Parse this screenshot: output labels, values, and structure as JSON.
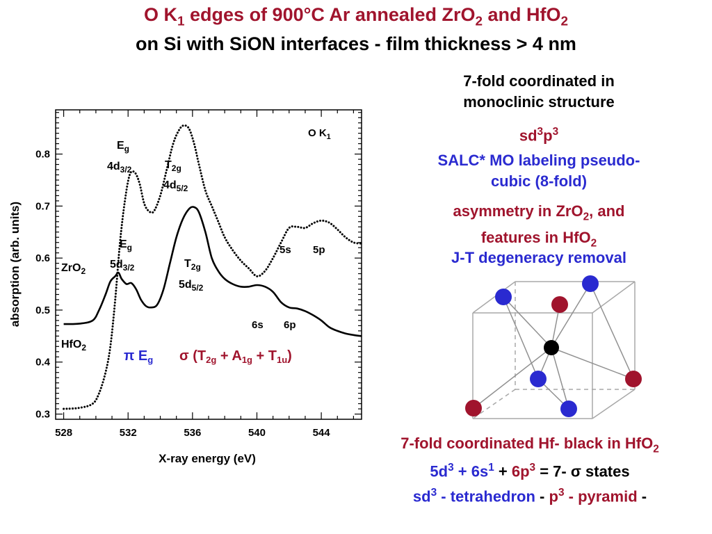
{
  "title": {
    "line1_pre": "O K",
    "line1_sub1": "1",
    "line1_mid": " edges of 900°C Ar annealed ZrO",
    "line1_sub2": "2",
    "line1_and": " and HfO",
    "line1_sub3": "2",
    "line2": "on Si with SiON interfaces - film thickness > 4 nm"
  },
  "right": {
    "coord_line1": "7-fold coordinated in",
    "coord_line2": "monoclinic structure",
    "sd": "sd",
    "sd_sup": "3",
    "p": "p",
    "p_sup": "3",
    "salc_line1": "SALC* MO labeling   pseudo-",
    "salc_line2": "cubic (8-fold)",
    "asym_a": "asymmetry in ZrO",
    "asym_sub": "2",
    "asym_b": ", and",
    "feat_a": "features in HfO",
    "feat_sub": "2",
    "jt": "J-T degeneracy removal"
  },
  "bottom": {
    "hf_a": "7-fold coordinated Hf- black in HfO",
    "hf_sub": "2",
    "s_5d": "5d",
    "s_5d_sup": "3",
    "s_plus1": " + ",
    "s_6s": "6s",
    "s_6s_sup": "1",
    "s_plus2": " + ",
    "s_6p": "6p",
    "s_6p_sup": "3",
    "s_eq": " = 7- ",
    "s_sigma": "σ",
    "s_states": " states",
    "t_sd": "sd",
    "t_sd_sup": "3",
    "t_tet": " - tetrahedron",
    "t_dash": " - ",
    "t_p": "p",
    "t_p_sup": "3",
    "t_pyr": " - pyramid",
    "t_end": " -"
  },
  "chart_data": {
    "type": "line",
    "xlabel": "X-ray energy (eV)",
    "ylabel": "absorption (arb. units)",
    "xlim": [
      527.5,
      546.5
    ],
    "ylim": [
      0.29,
      0.885
    ],
    "xticks": [
      528,
      532,
      536,
      540,
      544
    ],
    "yticks": [
      0.3,
      0.4,
      0.5,
      0.6,
      0.7,
      0.8
    ],
    "series": [
      {
        "name": "ZrO2",
        "style": "dotted",
        "x": [
          528,
          529,
          529.8,
          530.2,
          530.6,
          530.9,
          531.2,
          531.5,
          531.8,
          532.1,
          532.4,
          532.7,
          533.0,
          533.3,
          533.6,
          534.0,
          534.4,
          534.8,
          535.2,
          535.5,
          535.8,
          536.1,
          536.4,
          536.8,
          537.2,
          537.6,
          538.0,
          538.5,
          539.0,
          539.5,
          540.0,
          540.5,
          541.0,
          541.5,
          542.0,
          542.5,
          543.0,
          543.5,
          544.0,
          544.5,
          545.0,
          545.5,
          546.0,
          546.5
        ],
        "y": [
          0.31,
          0.312,
          0.32,
          0.34,
          0.38,
          0.43,
          0.52,
          0.63,
          0.71,
          0.76,
          0.765,
          0.745,
          0.705,
          0.69,
          0.69,
          0.72,
          0.77,
          0.82,
          0.848,
          0.855,
          0.848,
          0.82,
          0.78,
          0.73,
          0.7,
          0.67,
          0.64,
          0.615,
          0.595,
          0.58,
          0.565,
          0.575,
          0.6,
          0.63,
          0.658,
          0.66,
          0.658,
          0.667,
          0.672,
          0.668,
          0.655,
          0.64,
          0.63,
          0.628
        ]
      },
      {
        "name": "HfO2",
        "style": "solid",
        "x": [
          528,
          529,
          529.8,
          530.2,
          530.6,
          530.9,
          531.2,
          531.4,
          531.6,
          531.9,
          532.2,
          532.5,
          532.8,
          533.1,
          533.4,
          533.8,
          534.2,
          534.6,
          535.0,
          535.4,
          535.8,
          536.1,
          536.4,
          536.8,
          537.2,
          537.6,
          538.0,
          538.5,
          539.0,
          539.5,
          540.0,
          540.5,
          541.0,
          541.5,
          542.0,
          542.5,
          543.0,
          543.5,
          544.0,
          544.5,
          545.0,
          545.5,
          546.0,
          546.5
        ],
        "y": [
          0.473,
          0.474,
          0.48,
          0.5,
          0.53,
          0.555,
          0.565,
          0.572,
          0.56,
          0.55,
          0.552,
          0.54,
          0.52,
          0.508,
          0.505,
          0.51,
          0.54,
          0.59,
          0.64,
          0.675,
          0.695,
          0.698,
          0.688,
          0.65,
          0.6,
          0.575,
          0.56,
          0.55,
          0.545,
          0.545,
          0.548,
          0.545,
          0.535,
          0.515,
          0.505,
          0.503,
          0.498,
          0.49,
          0.48,
          0.467,
          0.46,
          0.455,
          0.452,
          0.45
        ]
      }
    ],
    "annotations": {
      "ok1_a": "O K",
      "ok1_b": "1",
      "eg_top_a": "E",
      "eg_top_b": "g",
      "d32_top_a": "4d",
      "d32_top_b": "3/2",
      "t2g_top_a": "T",
      "t2g_top_b": "2g",
      "d52_top_a": "4d",
      "d52_top_b": "5/2",
      "s5": "5s",
      "p5": "5p",
      "eg_bot_a": "E",
      "eg_bot_b": "g",
      "d32_bot_a": "5d",
      "d32_bot_b": "3/2",
      "t2g_bot_a": "T",
      "t2g_bot_b": "2g",
      "d52_bot_a": "5d",
      "d52_bot_b": "5/2",
      "s6": "6s",
      "p6": "6p",
      "zro2_a": "ZrO",
      "zro2_b": "2",
      "hfo2_a": "HfO",
      "hfo2_b": "2",
      "pi": "π",
      "pi_e": " E",
      "pi_e_sub": "g",
      "sigma": "σ",
      "sg_a": " (T",
      "sg_a_sub": "2g",
      "sg_plus1": " +   ",
      "sg_b": "A",
      "sg_b_sub": "1g",
      "sg_plus2": " + T",
      "sg_c_sub": "1u",
      "sg_close": ")"
    },
    "colors": {
      "red": "#a0142d",
      "blue": "#2a2ad0",
      "black": "#000000"
    }
  },
  "structure": {
    "atom_colors": {
      "hf": "#000000",
      "o_red": "#a0142d",
      "o_blue": "#2a2ad0"
    }
  }
}
